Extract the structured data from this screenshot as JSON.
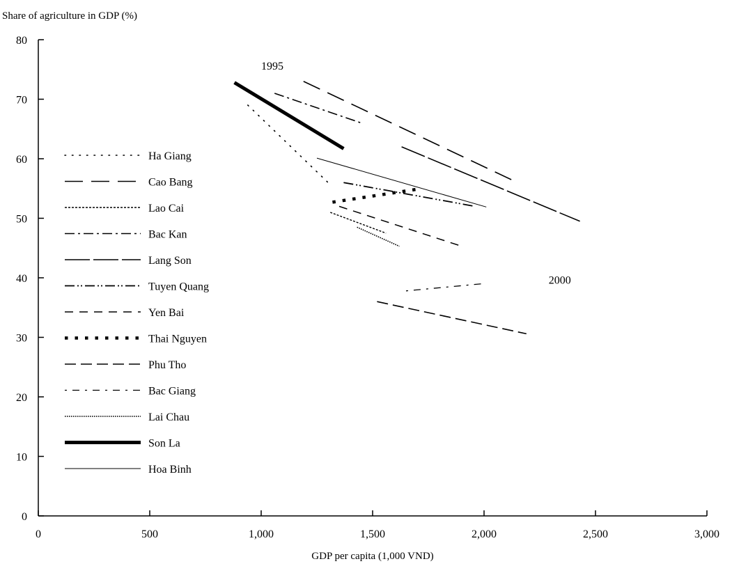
{
  "chart_data": {
    "type": "line",
    "ylabel": "Share of agriculture in GDP (%)",
    "xlabel": "GDP per capita (1,000 VND)",
    "xlim": [
      0,
      3000
    ],
    "ylim": [
      0,
      80
    ],
    "x_ticks": [
      0,
      500,
      1000,
      1500,
      2000,
      2500,
      3000
    ],
    "x_tick_labels": [
      "0",
      "500",
      "1,000",
      "1,500",
      "2,000",
      "2,500",
      "3,000"
    ],
    "y_ticks": [
      0,
      10,
      20,
      30,
      40,
      50,
      60,
      70,
      80
    ],
    "y_tick_labels": [
      "0",
      "10",
      "20",
      "30",
      "40",
      "50",
      "60",
      "70",
      "80"
    ],
    "grid": false,
    "legend_position": "left",
    "annotations": [
      {
        "text": "1995",
        "x": 1000,
        "y": 75
      },
      {
        "text": "2000",
        "x": 2290,
        "y": 39
      }
    ],
    "series": [
      {
        "name": "Ha Giang",
        "x": [
          940,
          1300
        ],
        "y": [
          69,
          56
        ],
        "color": "#000000",
        "dash": "1.5 9",
        "width": 1.6,
        "cap": "round"
      },
      {
        "name": "Cao Bang",
        "x": [
          1190,
          2150
        ],
        "y": [
          73,
          56
        ],
        "color": "#000000",
        "dash": "26 12",
        "width": 1.6,
        "cap": "butt"
      },
      {
        "name": "Lao Cai",
        "x": [
          1310,
          1560
        ],
        "y": [
          51,
          47.5
        ],
        "color": "#000000",
        "dash": "3 2",
        "width": 1.4,
        "cap": "butt"
      },
      {
        "name": "Bac Kan",
        "x": [
          1060,
          1450
        ],
        "y": [
          71,
          66
        ],
        "color": "#000000",
        "dash": "14 5 3 5",
        "width": 1.6,
        "cap": "butt"
      },
      {
        "name": "Lang Son",
        "x": [
          1630,
          2430
        ],
        "y": [
          62,
          49.5
        ],
        "color": "#000000",
        "dash": "36 5",
        "width": 1.6,
        "cap": "butt"
      },
      {
        "name": "Tuyen Quang",
        "x": [
          1370,
          1960
        ],
        "y": [
          56,
          52
        ],
        "color": "#000000",
        "dash": "14 4 2 3 2 4",
        "width": 1.8,
        "cap": "butt"
      },
      {
        "name": "Yen Bai",
        "x": [
          1350,
          1900
        ],
        "y": [
          52,
          45.3
        ],
        "color": "#000000",
        "dash": "12 9",
        "width": 1.5,
        "cap": "butt"
      },
      {
        "name": "Thai Nguyen",
        "x": [
          1320,
          1720
        ],
        "y": [
          52.7,
          55
        ],
        "color": "#000000",
        "dash": "4.5 10",
        "width": 4.5,
        "cap": "butt"
      },
      {
        "name": "Phu Tho",
        "x": [
          1520,
          2190
        ],
        "y": [
          36,
          30.6
        ],
        "color": "#000000",
        "dash": "16 7",
        "width": 1.6,
        "cap": "butt"
      },
      {
        "name": "Bac Giang",
        "x": [
          1650,
          1990
        ],
        "y": [
          37.8,
          39
        ],
        "color": "#000000",
        "dash": "3 8 10 8",
        "width": 1.3,
        "cap": "butt"
      },
      {
        "name": "Lai Chau",
        "x": [
          1430,
          1620
        ],
        "y": [
          48.5,
          45.3
        ],
        "color": "#000000",
        "dash": "1.6 1.4",
        "width": 1.6,
        "cap": "butt"
      },
      {
        "name": "Son La",
        "x": [
          880,
          1370
        ],
        "y": [
          72.8,
          61.7
        ],
        "color": "#000000",
        "dash": "",
        "width": 5,
        "cap": "butt"
      },
      {
        "name": "Hoa Binh",
        "x": [
          1250,
          2010
        ],
        "y": [
          60.1,
          51.9
        ],
        "color": "#000000",
        "dash": "",
        "width": 1,
        "cap": "butt"
      }
    ]
  }
}
